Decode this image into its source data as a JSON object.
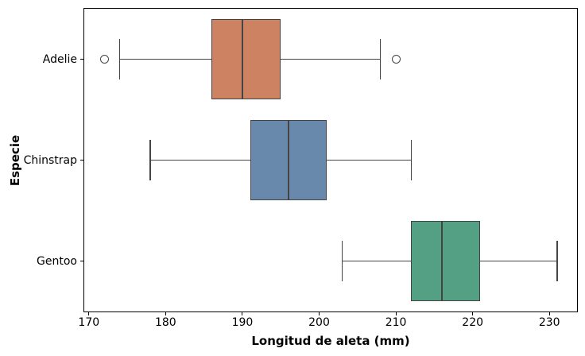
{
  "chart_data": {
    "type": "boxplot",
    "orientation": "horizontal",
    "title": "",
    "xlabel": "Longitud de aleta (mm)",
    "ylabel": "Especie",
    "categories": [
      "Adelie",
      "Chinstrap",
      "Gentoo"
    ],
    "xticks": [
      170,
      180,
      190,
      200,
      210,
      220,
      230
    ],
    "xlim": [
      169.4,
      233.6
    ],
    "grid": false,
    "legend": "none",
    "line_color": "#444444",
    "axis_color": "#000000",
    "series": [
      {
        "name": "Adelie",
        "whisker_low": 174,
        "q1": 186,
        "median": 190,
        "q3": 195,
        "whisker_high": 208,
        "outliers": [
          172,
          210
        ],
        "color": "#CD8262"
      },
      {
        "name": "Chinstrap",
        "whisker_low": 178,
        "q1": 191,
        "median": 196,
        "q3": 201,
        "whisker_high": 212,
        "outliers": [],
        "color": "#6889AC"
      },
      {
        "name": "Gentoo",
        "whisker_low": 203,
        "q1": 212,
        "median": 216,
        "q3": 221,
        "whisker_high": 231,
        "outliers": [],
        "color": "#54A084"
      }
    ]
  }
}
